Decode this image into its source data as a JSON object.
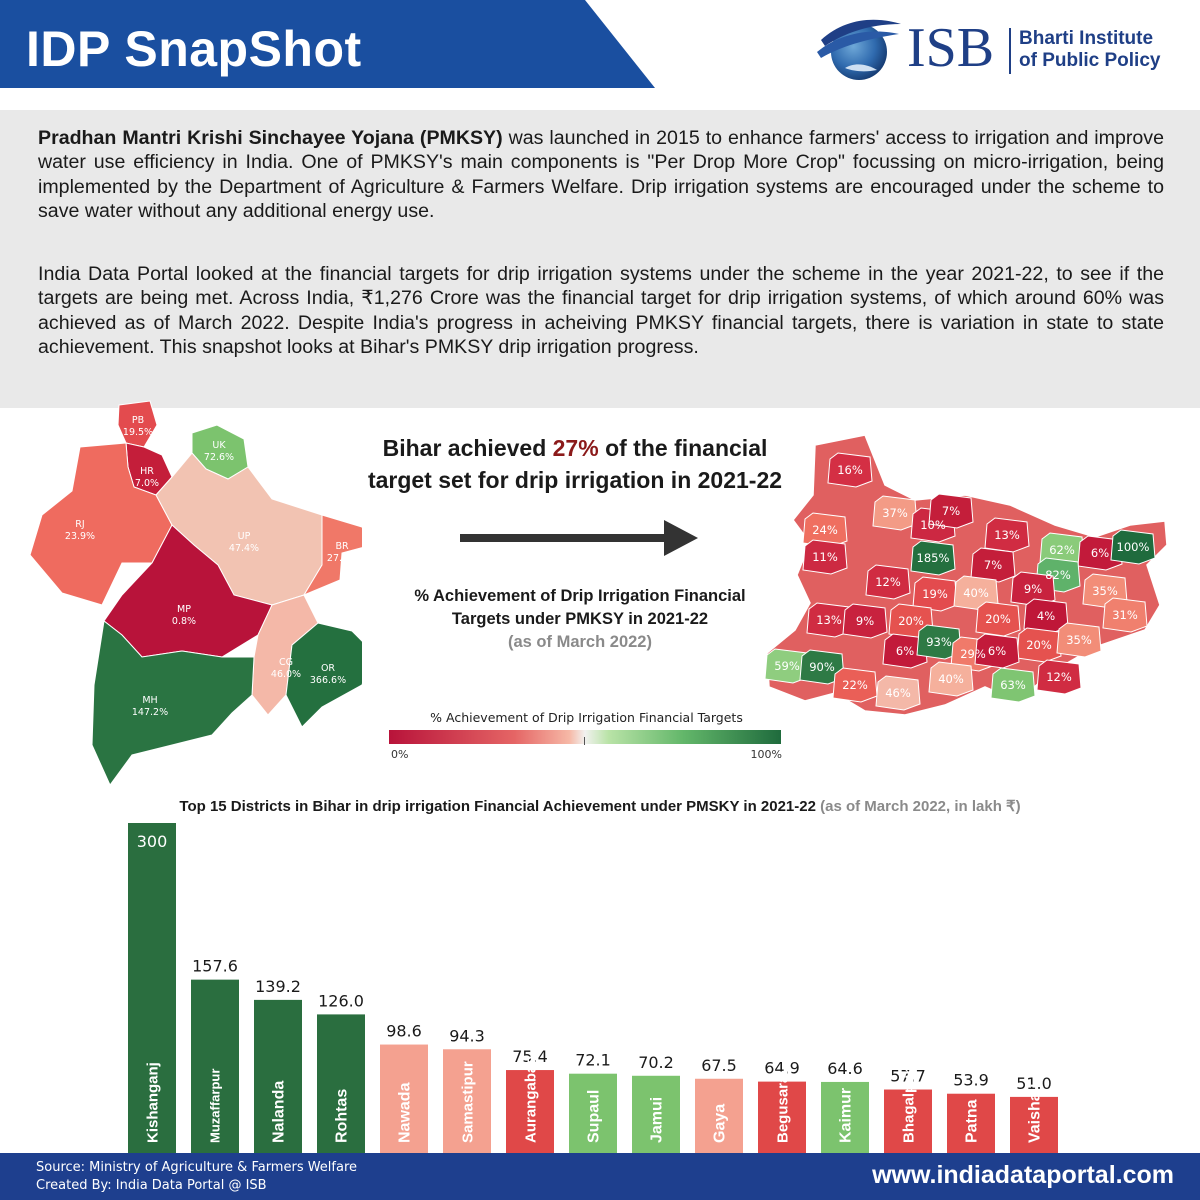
{
  "header": {
    "title": "IDP SnapShot",
    "logo": {
      "name": "ISB",
      "subtitle_line1": "Bharti Institute",
      "subtitle_line2": "of Public Policy"
    }
  },
  "intro": {
    "para1_bold": "Pradhan Mantri Krishi Sinchayee Yojana (PMKSY)",
    "para1_rest": " was launched in 2015 to enhance farmers' access to irrigation and improve water use efficiency in India. One of PMKSY's main components is \"Per Drop More Crop\" focussing on micro-irrigation, being implemented by the Department of Agriculture & Farmers Welfare. Drip irrigation systems are encouraged under the scheme to save water without any additional energy use.",
    "para2": "India Data Portal looked at the financial targets for drip irrigation systems under the scheme in the year 2021-22, to see if the targets are being met. Across India, ₹1,276 Crore was the financial target for drip irrigation systems, of which around 60% was achieved as of March 2022. Despite India's progress in acheiving PMKSY financial targets, there is variation in state to state achievement. This snapshot looks at Bihar's PMKSY drip irrigation progress."
  },
  "headline": {
    "line1_pre": "Bihar achieved ",
    "highlight": "27%",
    "line1_post": " of the financial",
    "line2": "target set for drip irrigation in 2021-22"
  },
  "map_caption": {
    "line1": "% Achievement of Drip Irrigation Financial",
    "line2": "Targets under PMKSY in 2021-22",
    "sub": "(as of March 2022)"
  },
  "legend": {
    "title": "% Achievement of Drip Irrigation Financial Targets",
    "min": "0%",
    "max": "100%"
  },
  "states": [
    {
      "code": "PB",
      "value": "19.5%",
      "color": "#e34b4e"
    },
    {
      "code": "HR",
      "value": "7.0%",
      "color": "#c41e3a"
    },
    {
      "code": "UK",
      "value": "72.6%",
      "color": "#7cc36e"
    },
    {
      "code": "RJ",
      "value": "23.9%",
      "color": "#ef6b5f"
    },
    {
      "code": "UP",
      "value": "47.4%",
      "color": "#f2c3b2"
    },
    {
      "code": "BR",
      "value": "27.0%",
      "color": "#f07868"
    },
    {
      "code": "MP",
      "value": "0.8%",
      "color": "#b8133a"
    },
    {
      "code": "CG",
      "value": "46.0%",
      "color": "#f4b8a8"
    },
    {
      "code": "OR",
      "value": "366.6%",
      "color": "#24703f"
    },
    {
      "code": "MH",
      "value": "147.2%",
      "color": "#2a7442"
    }
  ],
  "districts": [
    {
      "label": "16%",
      "color": "#d42f44"
    },
    {
      "label": "37%",
      "color": "#f39b86"
    },
    {
      "label": "10%",
      "color": "#cc2842"
    },
    {
      "label": "7%",
      "color": "#c41e3a"
    },
    {
      "label": "13%",
      "color": "#d02c42"
    },
    {
      "label": "24%",
      "color": "#ef6f60"
    },
    {
      "label": "185%",
      "color": "#24703f"
    },
    {
      "label": "62%",
      "color": "#8acb7a"
    },
    {
      "label": "6%",
      "color": "#c21a3a"
    },
    {
      "label": "100%",
      "color": "#1f6b3d"
    },
    {
      "label": "11%",
      "color": "#cd2a42"
    },
    {
      "label": "7%",
      "color": "#c41e3a"
    },
    {
      "label": "82%",
      "color": "#5fb26a"
    },
    {
      "label": "9%",
      "color": "#c8223e"
    },
    {
      "label": "12%",
      "color": "#d02c42"
    },
    {
      "label": "19%",
      "color": "#e34b4e"
    },
    {
      "label": "40%",
      "color": "#f5b09c"
    },
    {
      "label": "35%",
      "color": "#f28d78"
    },
    {
      "label": "4%",
      "color": "#bf1738"
    },
    {
      "label": "31%",
      "color": "#f0806e"
    },
    {
      "label": "13%",
      "color": "#d02c42"
    },
    {
      "label": "9%",
      "color": "#c8223e"
    },
    {
      "label": "20%",
      "color": "#e5524f"
    },
    {
      "label": "20%",
      "color": "#e5524f"
    },
    {
      "label": "20%",
      "color": "#e5524f"
    },
    {
      "label": "35%",
      "color": "#f28d78"
    },
    {
      "label": "6%",
      "color": "#c21a3a"
    },
    {
      "label": "93%",
      "color": "#2e7a45"
    },
    {
      "label": "29%",
      "color": "#f07a6a"
    },
    {
      "label": "6%",
      "color": "#c21a3a"
    },
    {
      "label": "59%",
      "color": "#8fcd7f"
    },
    {
      "label": "90%",
      "color": "#2e7a45"
    },
    {
      "label": "63%",
      "color": "#7fc572"
    },
    {
      "label": "22%",
      "color": "#ea5f57"
    },
    {
      "label": "46%",
      "color": "#f4b8a8"
    },
    {
      "label": "40%",
      "color": "#f5b09c"
    },
    {
      "label": "12%",
      "color": "#d02c42"
    }
  ],
  "chart_data": {
    "type": "bar",
    "title": "Top 15 Districts in Bihar in drip irrigation Financial Achievement under PMSKY in 2021-22",
    "subtitle": "(as of March 2022, in lakh ₹)",
    "categories": [
      "Kishanganj",
      "Muzaffarpur",
      "Nalanda",
      "Rohtas",
      "Nawada",
      "Samastipur",
      "Aurangabad",
      "Supaul",
      "Jamui",
      "Gaya",
      "Begusarai",
      "Kaimur",
      "Bhagalpur",
      "Patna",
      "Vaishali"
    ],
    "values": [
      300,
      157.6,
      139.2,
      126.0,
      98.6,
      94.3,
      75.4,
      72.1,
      70.2,
      67.5,
      64.9,
      64.6,
      57.7,
      53.9,
      51.0
    ],
    "value_labels": [
      "300",
      "157.6",
      "139.2",
      "126.0",
      "98.6",
      "94.3",
      "75.4",
      "72.1",
      "70.2",
      "67.5",
      "64.9",
      "64.6",
      "57.7",
      "53.9",
      "51.0"
    ],
    "colors": [
      "#2a6e3f",
      "#2a6e3f",
      "#2a6e3f",
      "#2a6e3f",
      "#f4a190",
      "#f4a190",
      "#e04848",
      "#7cc36e",
      "#7cc36e",
      "#f4a190",
      "#e04848",
      "#7cc36e",
      "#e04848",
      "#e04848",
      "#e04848"
    ],
    "ylim": [
      0,
      300
    ],
    "grid": false,
    "legend": "none"
  },
  "footer": {
    "source": "Source: Ministry of Agriculture & Farmers Welfare",
    "created": "Created By: India Data Portal @ ISB",
    "site": "www.indiadataportal.com"
  }
}
